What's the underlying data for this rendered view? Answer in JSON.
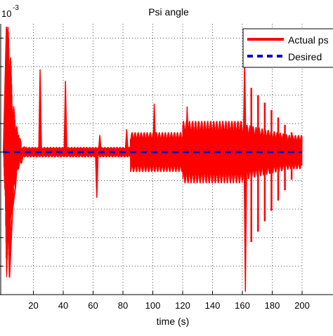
{
  "chart_data": {
    "type": "line",
    "title": "Psi angle",
    "xlabel": "time (s)",
    "ylabel": "",
    "scale_label": "10",
    "scale_exponent": "-3",
    "xlim": [
      0,
      200
    ],
    "ylim": [
      -5,
      4.5
    ],
    "x_ticks": [
      20,
      40,
      60,
      80,
      100,
      120,
      140,
      160,
      180,
      200
    ],
    "grid": true,
    "legend": "top-right",
    "series": [
      {
        "name": "Actual psi",
        "color": "#ff0000",
        "style": "solid",
        "x": [
          0,
          2,
          4,
          6,
          8,
          10,
          12,
          14,
          16,
          18,
          20,
          22,
          24,
          26,
          28,
          30,
          35,
          40,
          45,
          50,
          55,
          60,
          62,
          64,
          66,
          68,
          70,
          75,
          80,
          82,
          84,
          86,
          90,
          95,
          100,
          105,
          110,
          115,
          120,
          125,
          130,
          135,
          140,
          145,
          150,
          155,
          160,
          161,
          162,
          163,
          164,
          165,
          166,
          167,
          168,
          170,
          172,
          174,
          176,
          178,
          180,
          182,
          185,
          188,
          190,
          193,
          196,
          200
        ],
        "y": [
          0,
          4.4,
          -4.4,
          -2.0,
          -1.2,
          0.6,
          -0.4,
          0.2,
          -0.2,
          0.3,
          0.1,
          0.05,
          2.0,
          0.0,
          -0.3,
          0.1,
          0.0,
          1.5,
          0.0,
          0.15,
          -0.1,
          0.1,
          -0.5,
          0.7,
          -0.1,
          0.1,
          -1.0,
          0.1,
          0.6,
          -0.8,
          0.7,
          -0.7,
          0.5,
          -0.6,
          0.6,
          -0.8,
          0.8,
          -0.8,
          1.0,
          -1.2,
          1.2,
          -1.0,
          1.1,
          -1.1,
          1.0,
          -0.9,
          1.3,
          3.2,
          -5.0,
          2.8,
          -4.5,
          2.6,
          -4.0,
          2.4,
          -3.5,
          2.2,
          -3.0,
          2.0,
          -2.5,
          1.6,
          -2.0,
          1.4,
          -1.6,
          1.0,
          -1.2,
          0.7,
          -0.6,
          0.0
        ],
        "spikes": [
          {
            "x": 24.5,
            "y": 2.9,
            "label": ""
          },
          {
            "x": 41.5,
            "y": 2.5,
            "label": ""
          },
          {
            "x": 62.5,
            "y": -1.6,
            "label": ""
          },
          {
            "x": 64.5,
            "y": 0.6,
            "label": ""
          },
          {
            "x": 82.5,
            "y": 0.8,
            "label": ""
          },
          {
            "x": 101.0,
            "y": 1.7,
            "label": ""
          },
          {
            "x": 123.0,
            "y": 1.6,
            "label": ""
          },
          {
            "x": 161.5,
            "y": 3.2,
            "label": ""
          },
          {
            "x": 162.0,
            "y": -4.9,
            "label": ""
          }
        ]
      },
      {
        "name": "Desired psi",
        "color": "#0000cc",
        "style": "dashed",
        "x": [
          0,
          200
        ],
        "y": [
          0,
          0
        ]
      }
    ],
    "legend_entries": [
      "Actual ps",
      "Desired"
    ]
  }
}
